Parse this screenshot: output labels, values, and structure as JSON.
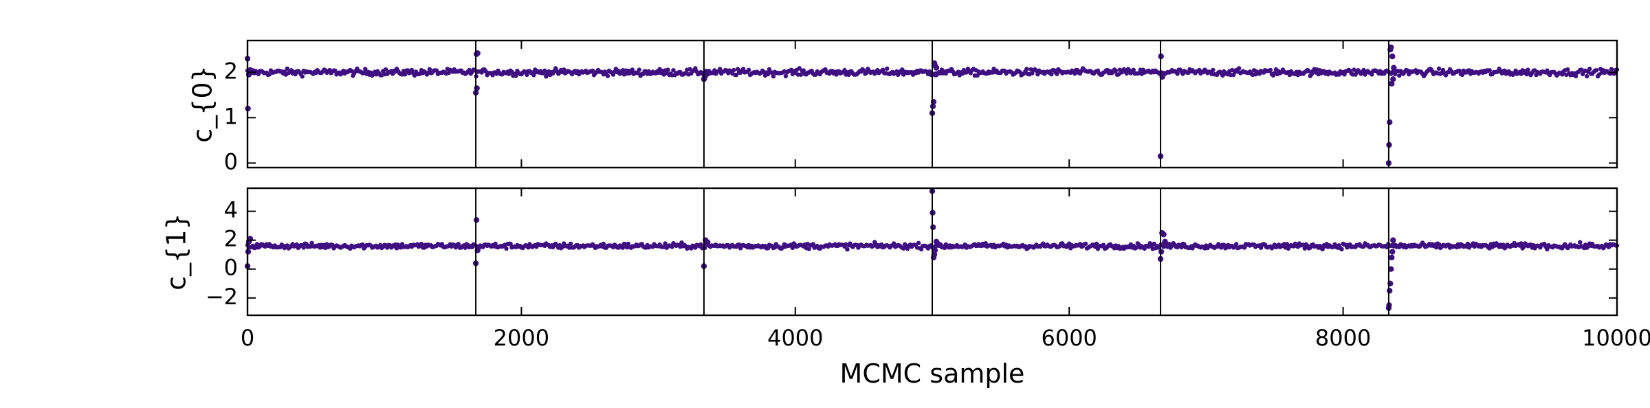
{
  "chart_data": {
    "type": "scatter",
    "xlabel": "MCMC sample",
    "xlim": [
      0,
      10000
    ],
    "x_ticks": [
      0,
      2000,
      4000,
      6000,
      8000,
      10000
    ],
    "x_tick_labels": [
      "0",
      "2000",
      "4000",
      "6000",
      "8000",
      "10000"
    ],
    "vlines": [
      1667,
      3333,
      5000,
      6667,
      8333
    ],
    "marker_color": "#3f0f82",
    "panels": [
      {
        "ylabel": "c_{0}",
        "ylim": [
          -0.1,
          2.7
        ],
        "y_ticks": [
          0,
          1,
          2
        ],
        "y_tick_labels": [
          "0",
          "1",
          "2"
        ],
        "baseline": 2.0,
        "noise": 0.035,
        "outliers": [
          [
            0,
            2.3
          ],
          [
            3,
            1.2
          ],
          [
            10,
            1.95
          ],
          [
            20,
            2.05
          ],
          [
            1667,
            1.55
          ],
          [
            1672,
            2.4
          ],
          [
            1675,
            1.65
          ],
          [
            1680,
            2.42
          ],
          [
            3333,
            1.85
          ],
          [
            3340,
            1.9
          ],
          [
            5000,
            1.1
          ],
          [
            5005,
            1.25
          ],
          [
            5010,
            1.35
          ],
          [
            5015,
            2.2
          ],
          [
            5020,
            2.15
          ],
          [
            5025,
            1.95
          ],
          [
            5030,
            2.1
          ],
          [
            6667,
            0.15
          ],
          [
            6670,
            2.35
          ],
          [
            6680,
            1.9
          ],
          [
            8333,
            0.0
          ],
          [
            8336,
            0.4
          ],
          [
            8340,
            0.9
          ],
          [
            8345,
            2.5
          ],
          [
            8350,
            2.55
          ],
          [
            8355,
            1.75
          ],
          [
            8360,
            2.35
          ],
          [
            8365,
            1.85
          ],
          [
            8370,
            2.1
          ]
        ]
      },
      {
        "ylabel": "c_{1}",
        "ylim": [
          -3.2,
          5.6
        ],
        "y_ticks": [
          -2,
          0,
          2,
          4
        ],
        "y_tick_labels": [
          "−2",
          "0",
          "2",
          "4"
        ],
        "baseline": 1.6,
        "noise": 0.09,
        "outliers": [
          [
            0,
            0.2
          ],
          [
            5,
            1.2
          ],
          [
            10,
            1.9
          ],
          [
            20,
            2.1
          ],
          [
            1667,
            0.4
          ],
          [
            1672,
            3.4
          ],
          [
            1680,
            1.3
          ],
          [
            3333,
            0.2
          ],
          [
            3345,
            2.0
          ],
          [
            3360,
            1.85
          ],
          [
            5000,
            5.4
          ],
          [
            5003,
            3.9
          ],
          [
            5006,
            2.9
          ],
          [
            5010,
            0.8
          ],
          [
            5015,
            1.0
          ],
          [
            5020,
            1.3
          ],
          [
            5030,
            1.9
          ],
          [
            6667,
            0.7
          ],
          [
            6672,
            1.2
          ],
          [
            6678,
            2.5
          ],
          [
            6690,
            2.4
          ],
          [
            6700,
            1.9
          ],
          [
            8333,
            -2.7
          ],
          [
            8336,
            -2.5
          ],
          [
            8340,
            -1.5
          ],
          [
            8345,
            -1.0
          ],
          [
            8350,
            0.0
          ],
          [
            8355,
            0.8
          ],
          [
            8360,
            1.2
          ],
          [
            8365,
            2.0
          ]
        ]
      }
    ]
  }
}
